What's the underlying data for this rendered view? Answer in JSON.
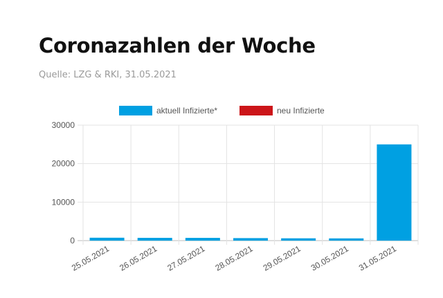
{
  "header": {
    "title": "Coronazahlen der Woche",
    "source": "Quelle: LZG & RKI, 31.05.2021"
  },
  "chart_data": {
    "type": "bar",
    "categories": [
      "25.05.2021",
      "26.05.2021",
      "27.05.2021",
      "28.05.2021",
      "29.05.2021",
      "30.05.2021",
      "31.05.2021"
    ],
    "series": [
      {
        "name": "aktuell Infizierte*",
        "color": "#00a0e2",
        "values": [
          750,
          720,
          710,
          650,
          600,
          580,
          25000
        ]
      },
      {
        "name": "neu Infizierte",
        "color": "#cc1519",
        "values": [
          0,
          0,
          0,
          0,
          0,
          0,
          0
        ]
      }
    ],
    "yticks": [
      "0",
      "10000",
      "20000",
      "30000"
    ],
    "ylim": [
      0,
      30000
    ],
    "grid": true,
    "legend": "top-center"
  }
}
